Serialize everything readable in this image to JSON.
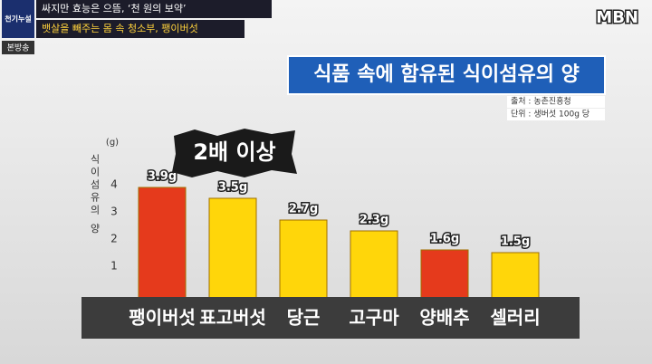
{
  "broadcast": {
    "logo": "천기누설",
    "headline_1": "싸지만 효능은 으뜸, ‘천 원의 보약’",
    "headline_2": "뱃살을 빼주는 몸 속 청소부, 팽이버섯",
    "badge": "본방송",
    "channel": "MBN"
  },
  "chart_data": {
    "type": "bar",
    "title": "식품 속에 함유된 식이섬유의 양",
    "source": "출처 : 농촌진흥청",
    "unit_note": "단위 : 생버섯 100g 당",
    "annotation": "2배 이상",
    "y_label": "식이섬유의 양",
    "y_unit": "(g)",
    "categories": [
      "팽이버섯",
      "표고버섯",
      "당근",
      "고구마",
      "양배추",
      "셀러리"
    ],
    "values": [
      3.9,
      3.5,
      2.7,
      2.3,
      1.6,
      1.5
    ],
    "value_labels": [
      "3.9g",
      "3.5g",
      "2.7g",
      "2.3g",
      "1.6g",
      "1.5g"
    ],
    "colors": [
      "#e53a1c",
      "#ffd60a",
      "#ffd60a",
      "#ffd60a",
      "#e53a1c",
      "#ffd60a"
    ],
    "ylim": [
      0,
      4
    ],
    "yticks": [
      1,
      2,
      3,
      4
    ],
    "grid": false
  }
}
